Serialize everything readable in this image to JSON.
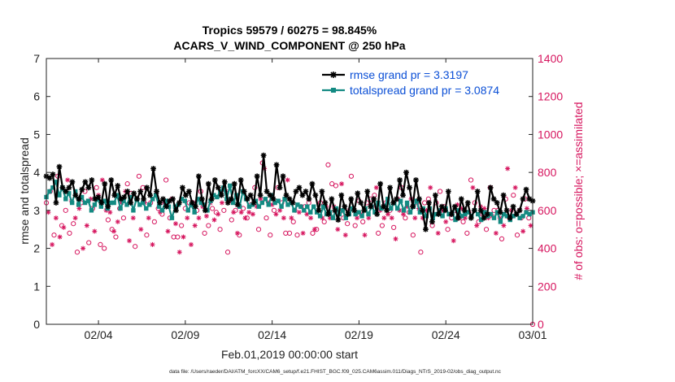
{
  "chart_data": {
    "type": "line",
    "title": "Tropics 59579 / 60275 = 98.845%",
    "subtitle": "ACARS_V_WIND_COMPONENT @ 250 hPa",
    "xlabel": "Feb.01,2019 00:00:00 start",
    "ylabel": "rmse and totalspread",
    "ylabel_right": "# of obs: o=possible; ×=assimilated",
    "footnote": "data file: /Users/raeder/DAI/ATM_forcXX/CAM6_setup/f.e21.FHIST_BGC.f09_025.CAM6assim.011/Diags_NTrS_2019-02/obs_diag_output.nc",
    "xlim": [
      1,
      29
    ],
    "ylim": [
      0,
      7
    ],
    "ylim_right": [
      0,
      1400
    ],
    "x_ticks": [
      {
        "value": 4,
        "label": "02/04"
      },
      {
        "value": 9,
        "label": "02/09"
      },
      {
        "value": 14,
        "label": "02/14"
      },
      {
        "value": 19,
        "label": "02/19"
      },
      {
        "value": 24,
        "label": "02/24"
      },
      {
        "value": 29,
        "label": "03/01"
      }
    ],
    "y_ticks": [
      0,
      1,
      2,
      3,
      4,
      5,
      6,
      7
    ],
    "y_ticks_right": [
      0,
      200,
      400,
      600,
      800,
      1000,
      1200,
      1400
    ],
    "legend_position": "top-right",
    "colors": {
      "rmse": "#000000",
      "spread": "#138a82",
      "obs": "#d6155e",
      "legend_text": "#0b4fd6"
    },
    "series": [
      {
        "name": "rmse grand pr = 3.3197",
        "values": [
          3.9,
          3.85,
          3.95,
          3.2,
          4.15,
          3.6,
          3.5,
          3.6,
          3.75,
          3.4,
          3.3,
          3.55,
          3.75,
          3.6,
          3.8,
          3.3,
          3.35,
          3.2,
          3.7,
          3.1,
          3.8,
          3.4,
          3.65,
          3.3,
          3.35,
          3.5,
          3.2,
          3.45,
          3.3,
          3.5,
          3.3,
          3.6,
          3.4,
          4.1,
          3.5,
          3.2,
          3.3,
          3.1,
          3.25,
          3.3,
          3.0,
          3.2,
          3.6,
          3.4,
          3.5,
          3.2,
          3.1,
          3.9,
          3.3,
          3.0,
          3.7,
          3.3,
          3.8,
          3.6,
          3.4,
          3.75,
          3.2,
          3.3,
          3.7,
          3.15,
          3.8,
          3.5,
          3.3,
          3.4,
          3.2,
          3.9,
          3.4,
          4.45,
          3.5,
          3.4,
          3.3,
          4.2,
          3.6,
          3.9,
          3.4,
          3.3,
          3.2,
          3.5,
          3.6,
          3.4,
          3.5,
          3.3,
          3.7,
          3.4,
          3.0,
          3.5,
          3.2,
          2.9,
          3.3,
          3.0,
          2.75,
          3.4,
          3.1,
          2.9,
          3.3,
          3.0,
          3.45,
          3.2,
          3.0,
          3.5,
          3.1,
          3.3,
          2.9,
          3.7,
          3.1,
          3.0,
          3.6,
          3.2,
          3.3,
          3.8,
          3.4,
          4.0,
          3.6,
          3.1,
          3.8,
          3.3,
          3.0,
          2.5,
          3.2,
          2.7,
          3.4,
          2.9,
          3.1,
          3.0,
          3.5,
          2.9,
          3.1,
          2.8,
          3.3,
          3.0,
          3.2,
          2.8,
          3.0,
          3.5,
          3.0,
          2.8,
          2.9,
          3.6,
          3.3,
          3.2,
          2.95,
          3.4,
          3.0,
          2.8,
          3.1,
          2.9,
          3.0,
          3.3,
          3.55,
          3.3,
          3.25
        ]
      },
      {
        "name": "totalspread grand pr = 3.0874",
        "values": [
          3.35,
          3.5,
          3.6,
          3.75,
          3.4,
          3.6,
          3.3,
          3.45,
          3.2,
          3.5,
          3.15,
          3.35,
          3.2,
          3.25,
          3.0,
          3.15,
          3.3,
          3.1,
          3.25,
          3.05,
          3.2,
          3.2,
          3.4,
          3.05,
          3.25,
          3.15,
          3.35,
          3.0,
          3.3,
          3.15,
          3.2,
          3.05,
          3.15,
          3.3,
          3.4,
          3.1,
          3.0,
          3.25,
          3.1,
          2.8,
          3.1,
          3.15,
          3.3,
          3.25,
          3.0,
          3.15,
          2.95,
          3.3,
          3.2,
          3.15,
          3.0,
          3.25,
          3.4,
          3.35,
          3.5,
          3.6,
          3.3,
          3.65,
          3.2,
          3.4,
          3.1,
          3.5,
          3.3,
          3.1,
          3.15,
          3.25,
          3.1,
          3.2,
          3.3,
          3.15,
          3.4,
          3.2,
          3.25,
          3.1,
          3.3,
          3.15,
          3.2,
          3.0,
          3.15,
          3.1,
          3.0,
          3.1,
          2.95,
          3.1,
          2.95,
          2.85,
          3.1,
          2.9,
          2.95,
          2.8,
          3.05,
          2.9,
          3.0,
          2.8,
          2.9,
          3.05,
          2.9,
          2.95,
          2.85,
          3.05,
          2.9,
          3.1,
          2.95,
          3.2,
          3.05,
          3.1,
          3.3,
          3.05,
          3.2,
          3.05,
          3.25,
          3.0,
          3.2,
          2.95,
          3.1,
          3.25,
          2.95,
          3.05,
          2.85,
          3.05,
          2.8,
          2.9,
          3.0,
          2.85,
          3.05,
          2.9,
          2.95,
          2.75,
          3.0,
          2.85,
          2.9,
          2.95,
          2.85,
          3.0,
          2.9,
          2.75,
          2.95,
          2.85,
          2.9,
          2.8,
          2.95,
          2.7,
          2.9,
          2.85,
          2.75,
          2.85,
          2.9,
          2.8,
          2.85,
          2.95,
          2.9,
          2.95
        ]
      }
    ],
    "obs_right": {
      "name": "# of obs",
      "values": [
        640,
        590,
        700,
        420,
        470,
        560,
        780,
        460,
        520,
        510,
        600,
        760,
        480,
        650,
        530,
        560,
        380,
        610,
        640,
        400,
        700,
        520,
        430,
        660,
        610,
        490,
        720,
        680,
        420,
        760,
        400,
        600,
        550,
        590,
        500,
        490,
        460,
        540,
        610,
        640,
        560,
        700,
        740,
        440,
        690,
        560,
        410,
        660,
        780,
        500,
        720,
        640,
        470,
        560,
        640,
        420,
        540,
        690,
        610,
        590,
        580,
        640,
        760,
        490,
        560,
        660,
        460,
        530,
        460,
        380,
        520,
        460,
        610,
        560,
        640,
        420,
        640,
        520,
        600,
        560,
        700,
        620,
        480,
        570,
        520,
        640,
        610,
        550,
        590,
        580,
        500,
        640,
        600,
        700,
        380,
        650,
        550,
        590,
        600,
        480,
        470,
        590,
        610,
        560,
        560,
        590,
        630,
        580,
        720,
        620,
        500,
        660,
        850,
        820,
        560,
        640,
        470,
        630,
        600,
        580,
        720,
        600,
        640,
        560,
        480,
        760,
        480,
        560,
        540,
        600,
        470,
        590,
        620,
        480,
        620,
        580,
        640,
        560,
        480,
        500,
        500,
        600,
        640,
        560,
        540,
        620,
        840,
        560,
        740,
        620,
        730,
        500,
        590,
        740,
        560,
        470,
        530,
        600,
        780,
        610,
        520,
        560,
        650,
        580,
        540,
        470,
        640,
        560,
        660,
        620,
        680,
        720,
        480,
        600,
        520,
        560,
        640,
        580,
        600,
        560,
        510,
        450,
        660,
        600,
        720,
        580,
        560,
        620,
        590,
        660,
        470,
        560,
        640,
        610,
        380,
        560,
        640,
        600,
        660,
        720,
        520,
        580,
        640,
        480,
        700,
        600,
        620,
        540,
        500,
        580,
        560,
        440,
        600,
        630,
        560,
        610,
        540,
        560,
        480,
        590,
        760,
        720,
        640,
        520,
        540,
        620,
        580,
        610,
        500,
        560,
        720,
        570,
        600,
        480,
        600,
        560,
        450,
        520,
        660,
        820,
        560,
        600,
        680,
        720,
        470,
        600,
        560,
        490,
        660,
        610,
        560,
        520,
        0
      ]
    }
  }
}
